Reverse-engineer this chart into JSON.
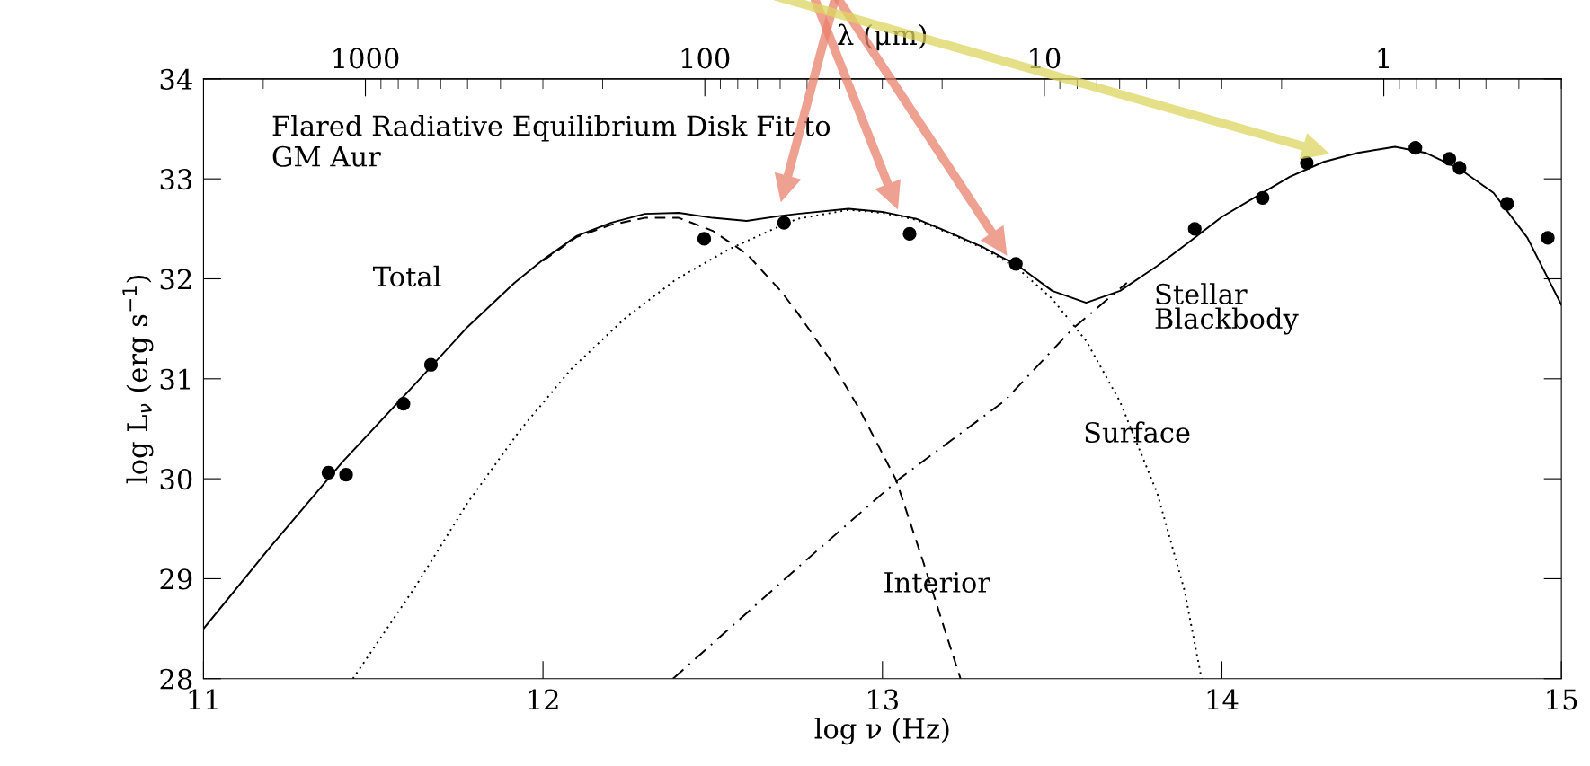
{
  "chart_data": {
    "type": "line",
    "title": "Flared Radiative Equilibrium Disk Fit to\nGM Aur",
    "xlabel": "log ν (Hz)",
    "ylabel": "log L$_{ν}$ (erg s$^{−1}$)",
    "x2label": "λ (μm)",
    "xlim": [
      11,
      15
    ],
    "ylim": [
      28,
      34
    ],
    "xticks": [
      11,
      12,
      13,
      14,
      15
    ],
    "yticks": [
      28,
      29,
      30,
      31,
      32,
      33,
      34
    ],
    "x2lim": [
      2998,
      0.2998
    ],
    "x2ticks": [
      1000,
      100,
      10,
      1
    ],
    "grid": false,
    "legend": false,
    "log": "x2",
    "series": [
      {
        "name": "Total",
        "color": "#000000",
        "line_style": "solid",
        "marker": "none",
        "x": [
          11.0,
          11.195,
          11.41,
          11.624,
          11.778,
          11.916,
          12.0,
          12.1,
          12.2,
          12.3,
          12.4,
          12.5,
          12.6,
          12.7,
          12.75,
          12.9,
          13.0,
          13.1,
          13.2,
          13.3,
          13.4,
          13.5,
          13.6,
          13.7,
          13.81,
          13.9,
          14.0,
          14.1,
          14.2,
          14.3,
          14.4,
          14.51,
          14.6,
          14.7,
          14.8,
          14.9,
          15.0
        ],
        "values": [
          28.5,
          29.31,
          30.17,
          30.95,
          31.52,
          31.96,
          32.19,
          32.43,
          32.56,
          32.65,
          32.66,
          32.61,
          32.58,
          32.63,
          32.65,
          32.7,
          32.67,
          32.6,
          32.46,
          32.31,
          32.13,
          31.88,
          31.76,
          31.88,
          32.13,
          32.36,
          32.62,
          32.82,
          33.02,
          33.17,
          33.26,
          33.32,
          33.26,
          33.1,
          32.86,
          32.41,
          31.74
        ]
      },
      {
        "name": "Interior",
        "color": "#000000",
        "line_style": "dashed",
        "marker": "none",
        "x": [
          12.0,
          12.1,
          12.2,
          12.3,
          12.4,
          12.5,
          12.6,
          12.7,
          12.75,
          12.84,
          12.93,
          13.04,
          13.12,
          13.19,
          13.23
        ],
        "values": [
          32.18,
          32.42,
          32.54,
          32.61,
          32.61,
          32.48,
          32.25,
          31.88,
          31.66,
          31.22,
          30.71,
          29.99,
          29.17,
          28.42,
          28.0
        ]
      },
      {
        "name": "Surface",
        "color": "#000000",
        "line_style": "dotted",
        "marker": "none",
        "x": [
          11.44,
          11.624,
          11.778,
          11.931,
          12.084,
          12.24,
          12.39,
          12.55,
          12.7,
          12.75,
          12.9,
          13.0,
          13.1,
          13.2,
          13.3,
          13.4,
          13.5,
          13.6,
          13.7,
          13.81,
          13.89,
          13.94
        ],
        "values": [
          28.0,
          28.92,
          29.76,
          30.48,
          31.1,
          31.6,
          31.99,
          32.3,
          32.53,
          32.6,
          32.69,
          32.66,
          32.59,
          32.45,
          32.3,
          32.1,
          31.8,
          31.38,
          30.77,
          29.85,
          28.88,
          28.0
        ]
      },
      {
        "name": "Stellar\nBlackbody",
        "color": "#000000",
        "line_style": "dashdot",
        "marker": "none",
        "x": [
          12.383,
          12.75,
          13.05,
          13.36,
          13.56,
          13.72
        ],
        "values": [
          28.0,
          29.11,
          30.0,
          30.78,
          31.5,
          31.96
        ]
      },
      {
        "type": "scatter",
        "color": "#000000",
        "marker": "circle",
        "x": [
          11.368,
          11.42,
          11.589,
          11.67,
          12.475,
          12.71,
          13.08,
          13.393,
          13.92,
          14.12,
          14.25,
          14.57,
          14.67,
          14.7,
          14.84,
          14.96
        ],
        "values": [
          30.06,
          30.04,
          30.75,
          31.14,
          32.4,
          32.56,
          32.45,
          32.15,
          32.5,
          32.81,
          33.16,
          33.31,
          33.2,
          33.11,
          32.75,
          32.41
        ]
      }
    ]
  }
}
